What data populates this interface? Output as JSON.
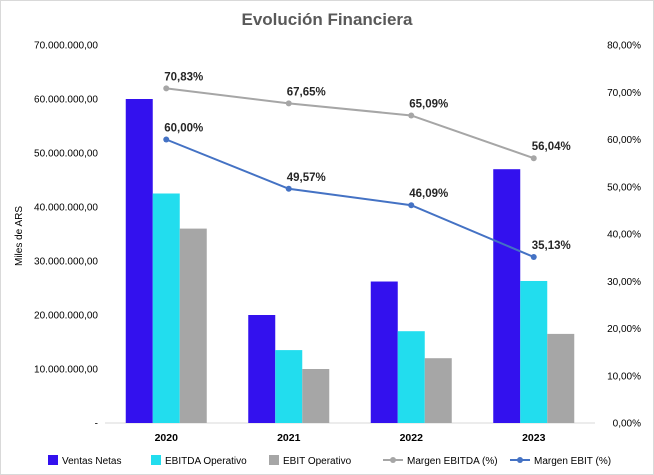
{
  "chart_data": {
    "type": "bar",
    "title": "Evolución Financiera",
    "ylabel": "Miles de ARS",
    "categories": [
      "2020",
      "2021",
      "2022",
      "2023"
    ],
    "y_left": {
      "ylim": [
        0,
        70000000
      ],
      "ticks": [
        0,
        10000000,
        20000000,
        30000000,
        40000000,
        50000000,
        60000000,
        70000000
      ],
      "tick_labels": [
        "-",
        "10.000.000,00",
        "20.000.000,00",
        "30.000.000,00",
        "40.000.000,00",
        "50.000.000,00",
        "60.000.000,00",
        "70.000.000,00"
      ]
    },
    "y_right": {
      "ylim": [
        0,
        80
      ],
      "ticks": [
        0,
        10,
        20,
        30,
        40,
        50,
        60,
        70,
        80
      ],
      "tick_labels": [
        "0,00%",
        "10,00%",
        "20,00%",
        "30,00%",
        "40,00%",
        "50,00%",
        "60,00%",
        "70,00%",
        "80,00%"
      ]
    },
    "series": [
      {
        "name": "Ventas Netas",
        "kind": "bar",
        "axis": "left",
        "color": "#3311ee",
        "values": [
          60000000,
          20000000,
          26200000,
          47000000
        ]
      },
      {
        "name": "EBITDA Operativo",
        "kind": "bar",
        "axis": "left",
        "color": "#22ddee",
        "values": [
          42500000,
          13500000,
          17000000,
          26300000
        ]
      },
      {
        "name": "EBIT Operativo",
        "kind": "bar",
        "axis": "left",
        "color": "#a6a6a6",
        "values": [
          36000000,
          10000000,
          12000000,
          16500000
        ]
      },
      {
        "name": "Margen EBITDA (%)",
        "kind": "line",
        "axis": "right",
        "color": "#a6a6a6",
        "values": [
          70.83,
          67.65,
          65.09,
          56.04
        ],
        "labels": [
          "70,83%",
          "67,65%",
          "65,09%",
          "56,04%"
        ]
      },
      {
        "name": "Margen EBIT (%)",
        "kind": "line",
        "axis": "right",
        "color": "#4472c4",
        "values": [
          60.0,
          49.57,
          46.09,
          35.13
        ],
        "labels": [
          "60,00%",
          "49,57%",
          "46,09%",
          "35,13%"
        ]
      }
    ],
    "grid": false,
    "legend_position": "bottom"
  }
}
